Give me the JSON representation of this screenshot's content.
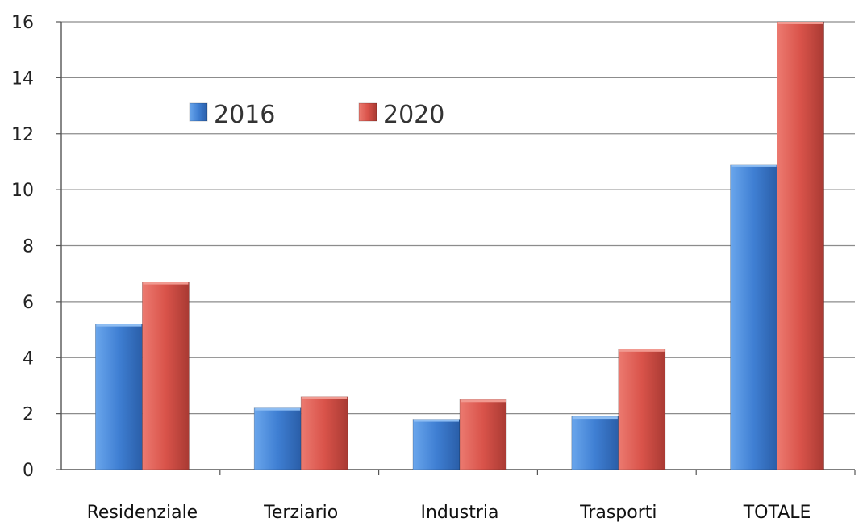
{
  "chart_data": {
    "type": "bar",
    "categories": [
      "Residenziale",
      "Terziario",
      "Industria",
      "Trasporti",
      "TOTALE"
    ],
    "series": [
      {
        "name": "2016",
        "values": [
          5.2,
          2.2,
          1.8,
          1.9,
          10.9
        ],
        "color": "#3f7fd3"
      },
      {
        "name": "2020",
        "values": [
          6.7,
          2.6,
          2.5,
          4.3,
          16.0
        ],
        "color": "#d9534a"
      }
    ],
    "y_ticks": [
      "0",
      "2",
      "4",
      "6",
      "8",
      "10",
      "12",
      "14",
      "16"
    ],
    "ylim": [
      0,
      16
    ],
    "grid": true,
    "legend_position": "top-left"
  }
}
